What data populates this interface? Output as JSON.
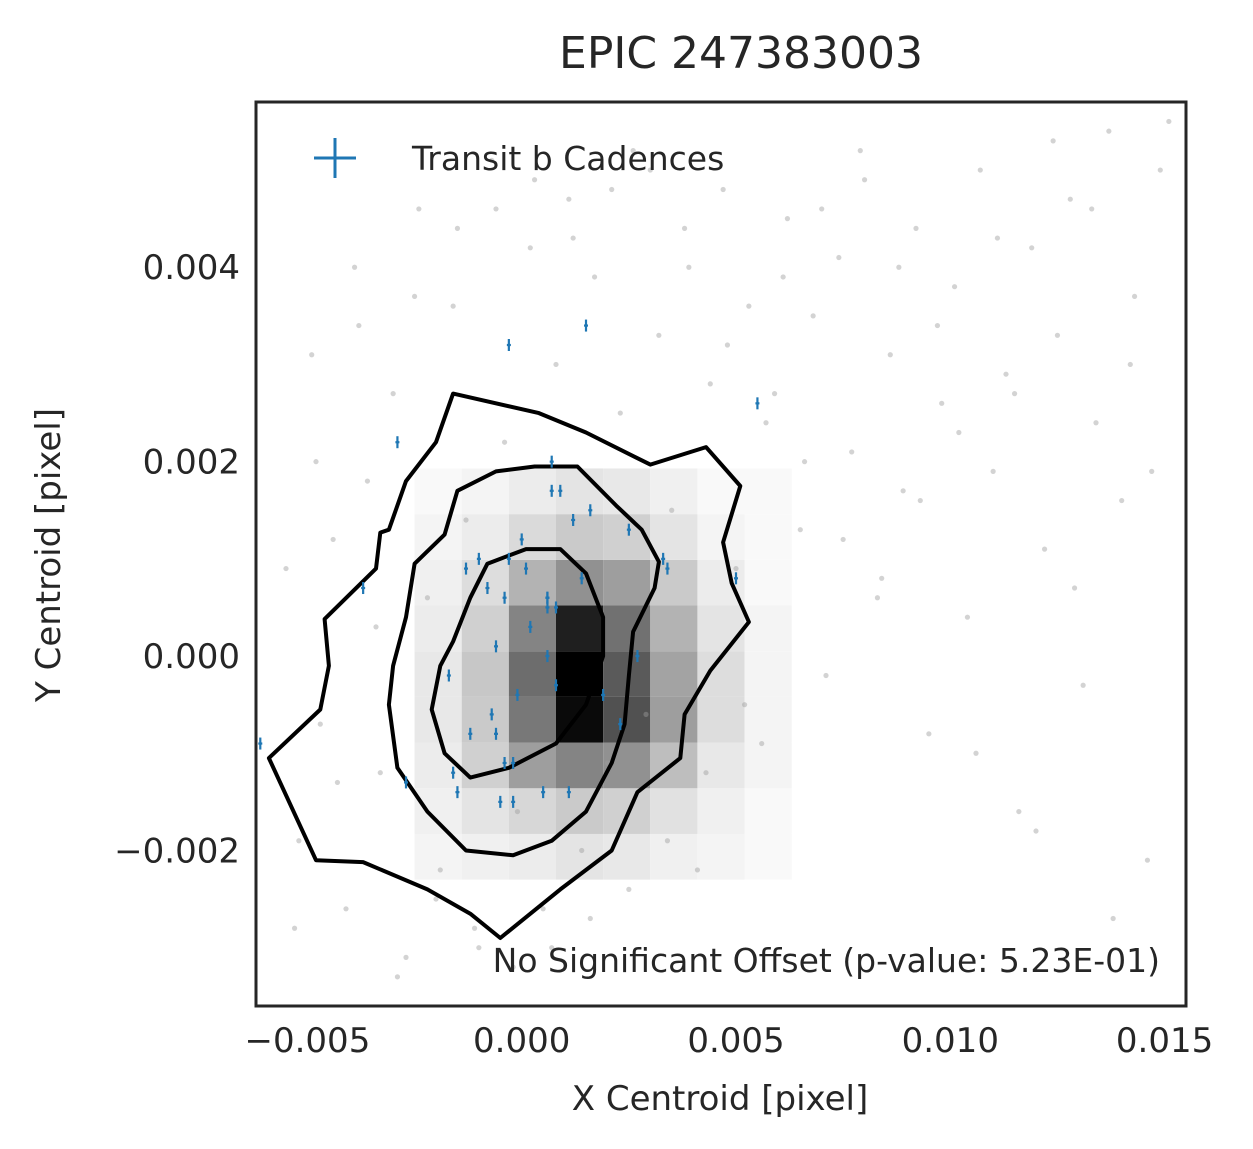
{
  "chart_data": {
    "type": "scatter",
    "title": "EPIC 247383003",
    "xlabel": "X Centroid [pixel]",
    "ylabel": "Y Centroid [pixel]",
    "xlim": [
      -0.0062,
      0.0155
    ],
    "ylim": [
      -0.0036,
      0.0057
    ],
    "x_ticks": [
      {
        "value": -0.005,
        "label": "−0.005"
      },
      {
        "value": 0.0,
        "label": "0.000"
      },
      {
        "value": 0.005,
        "label": "0.005"
      },
      {
        "value": 0.01,
        "label": "0.010"
      },
      {
        "value": 0.015,
        "label": "0.015"
      }
    ],
    "y_ticks": [
      {
        "value": 0.004,
        "label": "0.004"
      },
      {
        "value": 0.002,
        "label": "0.002"
      },
      {
        "value": 0.0,
        "label": "0.000"
      },
      {
        "value": -0.002,
        "label": "−0.002"
      }
    ],
    "grid": false,
    "legend_position": "top-left",
    "legend": [
      {
        "label": "Transit b Cadences",
        "marker": "+",
        "color": "#1f77b4"
      }
    ],
    "annotation": "No Significant Offset (p-value: 5.23E-01)",
    "colors": {
      "transit": "#1f77b4",
      "background_points": "#9e9e9e",
      "contours": "#000000"
    },
    "density_grid": {
      "x0": -0.0025,
      "y0": -0.0023,
      "dx": 0.0011,
      "dy": 0.00047,
      "nx": 8,
      "ny": 9,
      "counts": [
        [
          2,
          3,
          4,
          6,
          5,
          3,
          2,
          1
        ],
        [
          3,
          6,
          10,
          14,
          12,
          7,
          3,
          1
        ],
        [
          4,
          12,
          30,
          40,
          35,
          18,
          5,
          2
        ],
        [
          5,
          14,
          45,
          95,
          62,
          30,
          8,
          2
        ],
        [
          5,
          15,
          50,
          100,
          58,
          28,
          8,
          2
        ],
        [
          4,
          12,
          40,
          85,
          48,
          22,
          6,
          2
        ],
        [
          3,
          8,
          22,
          35,
          30,
          14,
          4,
          1
        ],
        [
          2,
          4,
          9,
          14,
          12,
          6,
          2,
          1
        ],
        [
          1,
          2,
          4,
          6,
          5,
          3,
          1,
          1
        ]
      ]
    },
    "contours": [
      {
        "level": "outer",
        "points": [
          [
            -0.0059,
            -0.00105
          ],
          [
            -0.0048,
            -0.0021
          ],
          [
            -0.0037,
            -0.00212
          ],
          [
            -0.0022,
            -0.0024
          ],
          [
            -0.0012,
            -0.00265
          ],
          [
            -0.0005,
            -0.0029
          ],
          [
            0.0009,
            -0.0024
          ],
          [
            0.0021,
            -0.002
          ],
          [
            0.0027,
            -0.0014
          ],
          [
            0.0037,
            -0.00105
          ],
          [
            0.0038,
            -0.0006
          ],
          [
            0.0044,
            -0.00015
          ],
          [
            0.0053,
            0.00035
          ],
          [
            0.0049,
            0.00075
          ],
          [
            0.0047,
            0.00117
          ],
          [
            0.0051,
            0.00175
          ],
          [
            0.0043,
            0.00215
          ],
          [
            0.003,
            0.00197
          ],
          [
            0.0015,
            0.0023
          ],
          [
            0.0004,
            0.0025
          ],
          [
            -0.0016,
            0.0027
          ],
          [
            -0.002,
            0.0022
          ],
          [
            -0.0027,
            0.0018
          ],
          [
            -0.0031,
            0.0013
          ],
          [
            -0.0033,
            0.00127
          ],
          [
            -0.0034,
            0.0009
          ],
          [
            -0.0046,
            0.00038
          ],
          [
            -0.0045,
            -0.0001
          ],
          [
            -0.0047,
            -0.00055
          ],
          [
            -0.0059,
            -0.00105
          ]
        ]
      },
      {
        "level": "middle",
        "points": [
          [
            -0.0031,
            -0.0005
          ],
          [
            -0.0029,
            -0.00115
          ],
          [
            -0.0022,
            -0.0016
          ],
          [
            -0.0013,
            -0.002
          ],
          [
            -0.0002,
            -0.00205
          ],
          [
            0.0007,
            -0.0019
          ],
          [
            0.0015,
            -0.0016
          ],
          [
            0.0021,
            -0.0011
          ],
          [
            0.0024,
            -0.0007
          ],
          [
            0.0025,
            -0.0002
          ],
          [
            0.0026,
            0.00025
          ],
          [
            0.0031,
            0.0007
          ],
          [
            0.0032,
            0.00097
          ],
          [
            0.0028,
            0.0013
          ],
          [
            0.0022,
            0.00155
          ],
          [
            0.0013,
            0.00195
          ],
          [
            0.0003,
            0.00195
          ],
          [
            -0.0006,
            0.0019
          ],
          [
            -0.0015,
            0.0017
          ],
          [
            -0.0018,
            0.00125
          ],
          [
            -0.0025,
            0.00095
          ],
          [
            -0.0027,
            0.0004
          ],
          [
            -0.003,
            -0.0001
          ],
          [
            -0.0031,
            -0.0005
          ]
        ]
      },
      {
        "level": "inner",
        "points": [
          [
            -0.0021,
            -0.00055
          ],
          [
            -0.0018,
            -0.001
          ],
          [
            -0.0012,
            -0.00125
          ],
          [
            -0.0003,
            -0.00115
          ],
          [
            0.0008,
            -0.0009
          ],
          [
            0.0015,
            -0.0005
          ],
          [
            0.0019,
            0.0
          ],
          [
            0.0019,
            0.0004
          ],
          [
            0.0015,
            0.00085
          ],
          [
            0.0009,
            0.0011
          ],
          [
            0.0001,
            0.0011
          ],
          [
            -0.0008,
            0.00095
          ],
          [
            -0.0012,
            0.0006
          ],
          [
            -0.0016,
            0.00015
          ],
          [
            -0.0019,
            -0.0001
          ],
          [
            -0.0021,
            -0.00055
          ]
        ]
      }
    ],
    "background_points": {
      "x": [
        -0.0055,
        -0.0052,
        -0.0049,
        -0.0047,
        -0.0044,
        -0.0041,
        -0.0039,
        -0.0036,
        -0.0033,
        -0.003,
        -0.0027,
        -0.0024,
        -0.0022,
        -0.0019,
        -0.0016,
        -0.0013,
        -0.001,
        -0.0007,
        -0.0004,
        -0.0001,
        0.0002,
        0.0005,
        0.0008,
        0.0011,
        0.0014,
        0.0017,
        0.002,
        0.0023,
        0.0026,
        0.0029,
        0.0032,
        0.0035,
        0.0038,
        0.0041,
        0.0044,
        0.0047,
        0.005,
        0.0053,
        0.0056,
        0.0059,
        0.0062,
        0.0065,
        0.0068,
        0.0071,
        0.0074,
        0.0077,
        0.008,
        0.0083,
        0.0086,
        0.0089,
        0.0092,
        0.0095,
        0.0098,
        0.0101,
        0.0104,
        0.0107,
        0.011,
        0.0113,
        0.0116,
        0.0119,
        0.0122,
        0.0125,
        0.0128,
        0.0131,
        0.0134,
        0.0137,
        0.014,
        0.0143,
        0.0146,
        0.0149,
        -0.0053,
        -0.0048,
        -0.0043,
        -0.0038,
        -0.0034,
        -0.0029,
        -0.0025,
        -0.002,
        -0.0015,
        -0.0011,
        -0.0006,
        -0.0002,
        0.0003,
        0.0007,
        0.0012,
        0.0016,
        0.0021,
        0.0025,
        0.003,
        0.0034,
        0.0039,
        0.0043,
        0.0048,
        0.0052,
        0.0057,
        0.0061,
        0.0066,
        0.007,
        0.0075,
        0.0079,
        0.0084,
        0.0088,
        0.0093,
        0.0097,
        0.0102,
        0.0106,
        0.0111,
        0.0115,
        0.012,
        0.0124,
        0.0129,
        0.0133,
        0.0138,
        0.0142,
        0.0147,
        0.0151
      ],
      "y": [
        0.0009,
        -0.0019,
        0.0031,
        -0.0007,
        0.0012,
        -0.0026,
        0.004,
        0.0018,
        -0.0012,
        0.0027,
        -0.0031,
        0.0046,
        0.0006,
        -0.0022,
        0.0036,
        0.0014,
        -0.003,
        0.0051,
        0.0022,
        -0.0016,
        0.0042,
        -0.0026,
        0.003,
        0.0047,
        -0.002,
        0.0039,
        -0.0011,
        0.0025,
        0.0052,
        -0.0006,
        0.0033,
        0.0015,
        0.0044,
        -0.0022,
        0.0028,
        0.0048,
        0.0009,
        0.0036,
        -0.0009,
        0.0027,
        0.0045,
        0.0013,
        0.0035,
        -0.0002,
        0.0041,
        0.0021,
        0.0049,
        0.0006,
        0.0031,
        0.0017,
        0.0044,
        -0.0008,
        0.0026,
        0.0038,
        0.0004,
        0.005,
        0.0019,
        0.0029,
        -0.0016,
        0.0042,
        0.0011,
        0.0033,
        0.0047,
        -0.0003,
        0.0024,
        0.0054,
        0.0016,
        0.0037,
        -0.0021,
        0.005,
        -0.0028,
        0.002,
        -0.0013,
        0.0034,
        0.0003,
        -0.0033,
        0.0037,
        -0.0025,
        0.0044,
        -0.0028,
        0.0046,
        -0.0032,
        0.0049,
        -0.003,
        0.0043,
        -0.0027,
        0.0048,
        -0.0024,
        0.005,
        -0.0019,
        0.004,
        -0.0012,
        0.0032,
        -0.0005,
        0.0024,
        0.0039,
        0.002,
        0.0046,
        0.0012,
        0.0052,
        0.0008,
        0.004,
        0.0016,
        0.0034,
        0.0023,
        -0.001,
        0.0043,
        0.0027,
        -0.0018,
        0.0053,
        0.0007,
        0.0046,
        -0.0027,
        0.003,
        0.0019,
        0.0055
      ]
    },
    "transit_points": {
      "x": [
        -0.0061,
        -0.0037,
        -0.0029,
        -0.0027,
        -0.0017,
        -0.0016,
        -0.0015,
        -0.0013,
        -0.0012,
        -0.001,
        -0.0008,
        -0.0007,
        -0.0006,
        -0.0006,
        -0.0005,
        -0.0004,
        -0.0004,
        -0.0003,
        -0.0002,
        -0.0002,
        -0.0001,
        0.0,
        0.0001,
        0.0002,
        0.0005,
        0.0006,
        0.0006,
        0.0006,
        0.0006,
        0.0007,
        0.0007,
        0.0008,
        0.0008,
        0.0009,
        0.0011,
        0.0012,
        0.0014,
        0.0016,
        0.0019,
        0.0023,
        0.0025,
        0.0027,
        0.0033,
        0.0034,
        0.005,
        0.0055,
        -0.0003,
        0.0015
      ],
      "y": [
        -0.0009,
        0.0007,
        0.0022,
        -0.0013,
        -0.0002,
        -0.0012,
        -0.0014,
        0.0009,
        -0.0008,
        0.001,
        0.0007,
        -0.0006,
        -0.0008,
        0.0001,
        -0.0015,
        -0.0011,
        0.0006,
        0.001,
        -0.0015,
        -0.0011,
        -0.0004,
        0.0012,
        0.0009,
        0.0003,
        -0.0014,
        0.0006,
        0.0006,
        0.0,
        0.0005,
        0.002,
        0.0017,
        -0.0003,
        0.0005,
        0.0017,
        -0.0014,
        0.0014,
        0.0008,
        0.0015,
        -0.0004,
        -0.0007,
        0.0013,
        0.0,
        0.001,
        0.0009,
        0.0008,
        0.0026,
        0.0032,
        0.0034
      ]
    }
  }
}
